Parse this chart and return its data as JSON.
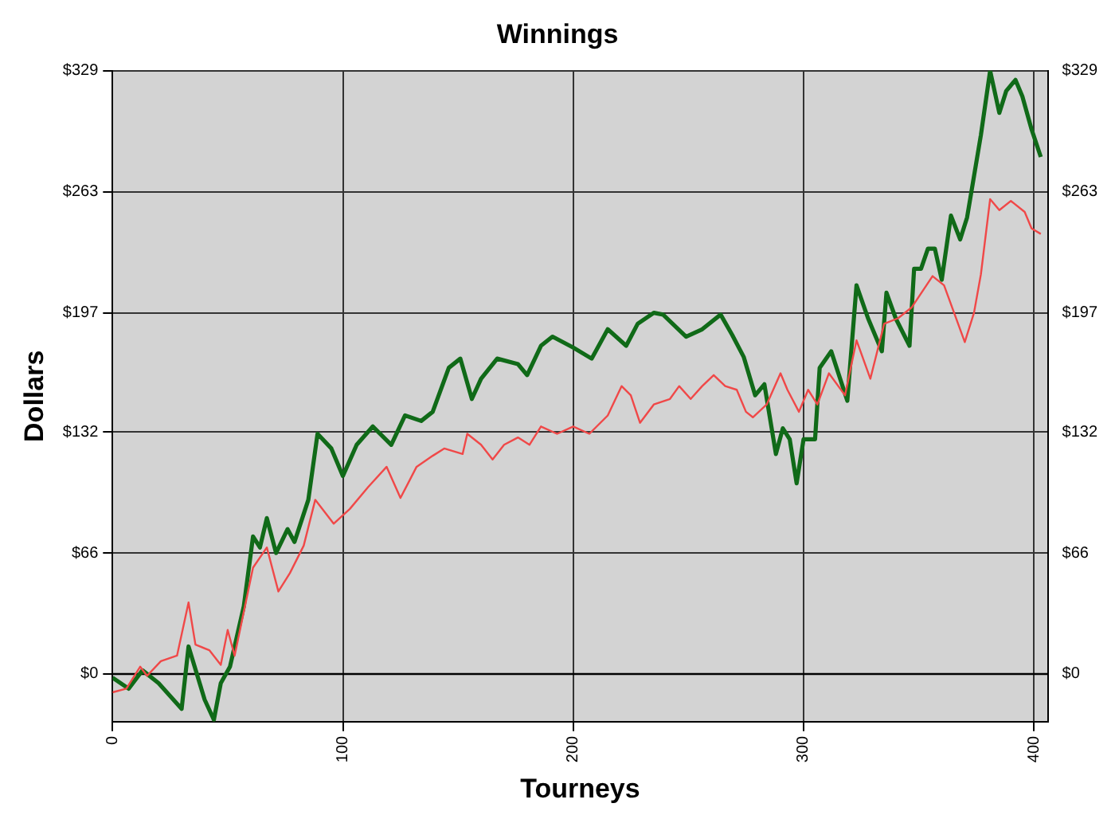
{
  "chart_data": {
    "type": "line",
    "title": "Winnings",
    "xlabel": "Tourneys",
    "ylabel": "Dollars",
    "xlim": [
      0,
      406
    ],
    "xticks": [
      0,
      100,
      200,
      300,
      400
    ],
    "ylim": [
      -26,
      329
    ],
    "yticks": [
      {
        "value": 0,
        "label": "$0"
      },
      {
        "value": 66,
        "label": "$66"
      },
      {
        "value": 132,
        "label": "$132"
      },
      {
        "value": 197,
        "label": "$197"
      },
      {
        "value": 263,
        "label": "$263"
      },
      {
        "value": 329,
        "label": "$329"
      }
    ],
    "y2lim": [
      -26,
      329
    ],
    "y2ticks": [
      {
        "value": 0,
        "label": "$0"
      },
      {
        "value": 66,
        "label": "$66"
      },
      {
        "value": 132,
        "label": "$132"
      },
      {
        "value": 197,
        "label": "$197"
      },
      {
        "value": 263,
        "label": "$263"
      },
      {
        "value": 329,
        "label": "$329"
      }
    ],
    "grid": true,
    "marker": "none",
    "line_style": "solid",
    "legend": false,
    "ref_lines": [
      {
        "axis": "y",
        "value": 0,
        "color": "#000000"
      }
    ],
    "series": [
      {
        "color": "#f04848",
        "x": [
          0,
          6,
          12,
          15,
          21,
          28,
          33,
          36,
          42,
          47,
          50,
          53,
          57,
          61,
          67,
          72,
          77,
          83,
          88,
          96,
          103,
          111,
          119,
          125,
          132,
          139,
          144,
          152,
          154,
          160,
          165,
          170,
          176,
          181,
          186,
          193,
          200,
          207,
          215,
          221,
          225,
          229,
          235,
          242,
          246,
          251,
          256,
          261,
          266,
          271,
          275,
          278,
          284,
          290,
          293,
          298,
          302,
          306,
          311,
          318,
          323,
          329,
          335,
          341,
          347,
          356,
          361,
          370,
          374,
          377,
          381,
          385,
          390,
          396,
          399,
          403
        ],
        "values": [
          -10,
          -8,
          4,
          -1,
          7,
          10,
          39,
          16,
          13,
          5,
          24,
          10,
          34,
          58,
          69,
          45,
          55,
          70,
          95,
          82,
          90,
          102,
          113,
          96,
          113,
          119,
          123,
          120,
          131,
          125,
          117,
          125,
          129,
          125,
          135,
          131,
          135,
          131,
          141,
          157,
          152,
          137,
          147,
          150,
          157,
          150,
          157,
          163,
          157,
          155,
          143,
          140,
          147,
          164,
          155,
          143,
          155,
          147,
          164,
          152,
          182,
          161,
          191,
          194,
          200,
          217,
          212,
          181,
          197,
          218,
          259,
          253,
          258,
          252,
          243,
          240
        ]
      },
      {
        "color": "#106a18",
        "x": [
          0,
          7,
          13,
          20,
          30,
          33,
          40,
          44,
          47,
          51,
          57,
          61,
          64,
          67,
          71,
          76,
          79,
          85,
          89,
          95,
          100,
          106,
          113,
          121,
          127,
          134,
          139,
          146,
          151,
          156,
          160,
          167,
          176,
          180,
          186,
          191,
          200,
          208,
          215,
          223,
          228,
          235,
          239,
          249,
          256,
          264,
          269,
          274,
          279,
          283,
          288,
          291,
          294,
          297,
          300,
          305,
          307,
          312,
          319,
          323,
          328,
          334,
          336,
          340,
          346,
          348,
          351,
          354,
          357,
          360,
          364,
          368,
          371,
          377,
          381,
          385,
          388,
          392,
          395,
          399,
          403
        ],
        "values": [
          -2,
          -8,
          2,
          -5,
          -19,
          15,
          -14,
          -25,
          -5,
          4,
          37,
          75,
          69,
          85,
          66,
          79,
          72,
          95,
          131,
          123,
          108,
          125,
          135,
          125,
          141,
          138,
          143,
          167,
          172,
          150,
          161,
          172,
          169,
          163,
          179,
          184,
          178,
          172,
          188,
          179,
          191,
          197,
          196,
          184,
          188,
          196,
          185,
          173,
          152,
          158,
          120,
          134,
          128,
          104,
          128,
          128,
          167,
          176,
          149,
          212,
          194,
          176,
          208,
          194,
          179,
          221,
          221,
          232,
          232,
          215,
          250,
          237,
          249,
          294,
          329,
          306,
          318,
          324,
          315,
          297,
          282
        ]
      }
    ]
  }
}
